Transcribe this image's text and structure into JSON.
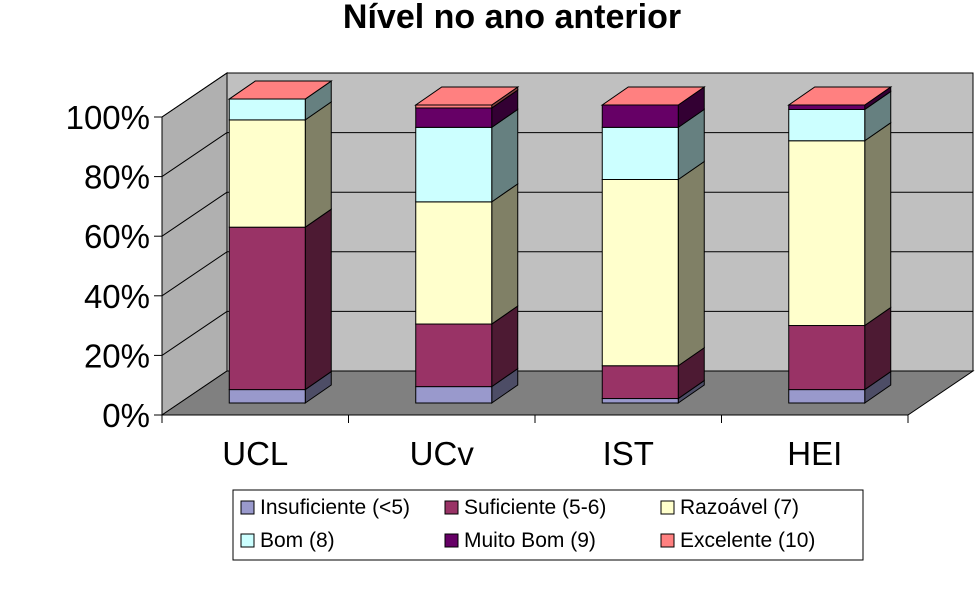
{
  "chart_data": {
    "type": "bar",
    "stacked": true,
    "percent": true,
    "three_d": true,
    "title": "Nível no ano anterior",
    "categories": [
      "UCL",
      "UCv",
      "IST",
      "HEI"
    ],
    "y_ticks": [
      "0%",
      "20%",
      "40%",
      "60%",
      "80%",
      "100%"
    ],
    "ylim": [
      0,
      100
    ],
    "grid": true,
    "legend_position": "bottom",
    "series": [
      {
        "name": "Insuficiente (<5)",
        "color": "#9999cc",
        "values": [
          4.5,
          5.5,
          1.5,
          4.5
        ]
      },
      {
        "name": "Suficiente (5-6)",
        "color": "#993366",
        "values": [
          54.5,
          21,
          11,
          21.5
        ]
      },
      {
        "name": "Razoável (7)",
        "color": "#ffffcc",
        "values": [
          36,
          41,
          62.5,
          62
        ]
      },
      {
        "name": "Bom (8)",
        "color": "#ccffff",
        "values": [
          7,
          25,
          17.5,
          10.5
        ]
      },
      {
        "name": "Muito Bom (9)",
        "color": "#660066",
        "values": [
          0,
          6.5,
          7.5,
          1.5
        ]
      },
      {
        "name": "Excelente (10)",
        "color": "#ff8080",
        "values": [
          0,
          1,
          0,
          0
        ]
      }
    ],
    "wall_color": "#c0c0c0",
    "floor_color": "#808080"
  }
}
